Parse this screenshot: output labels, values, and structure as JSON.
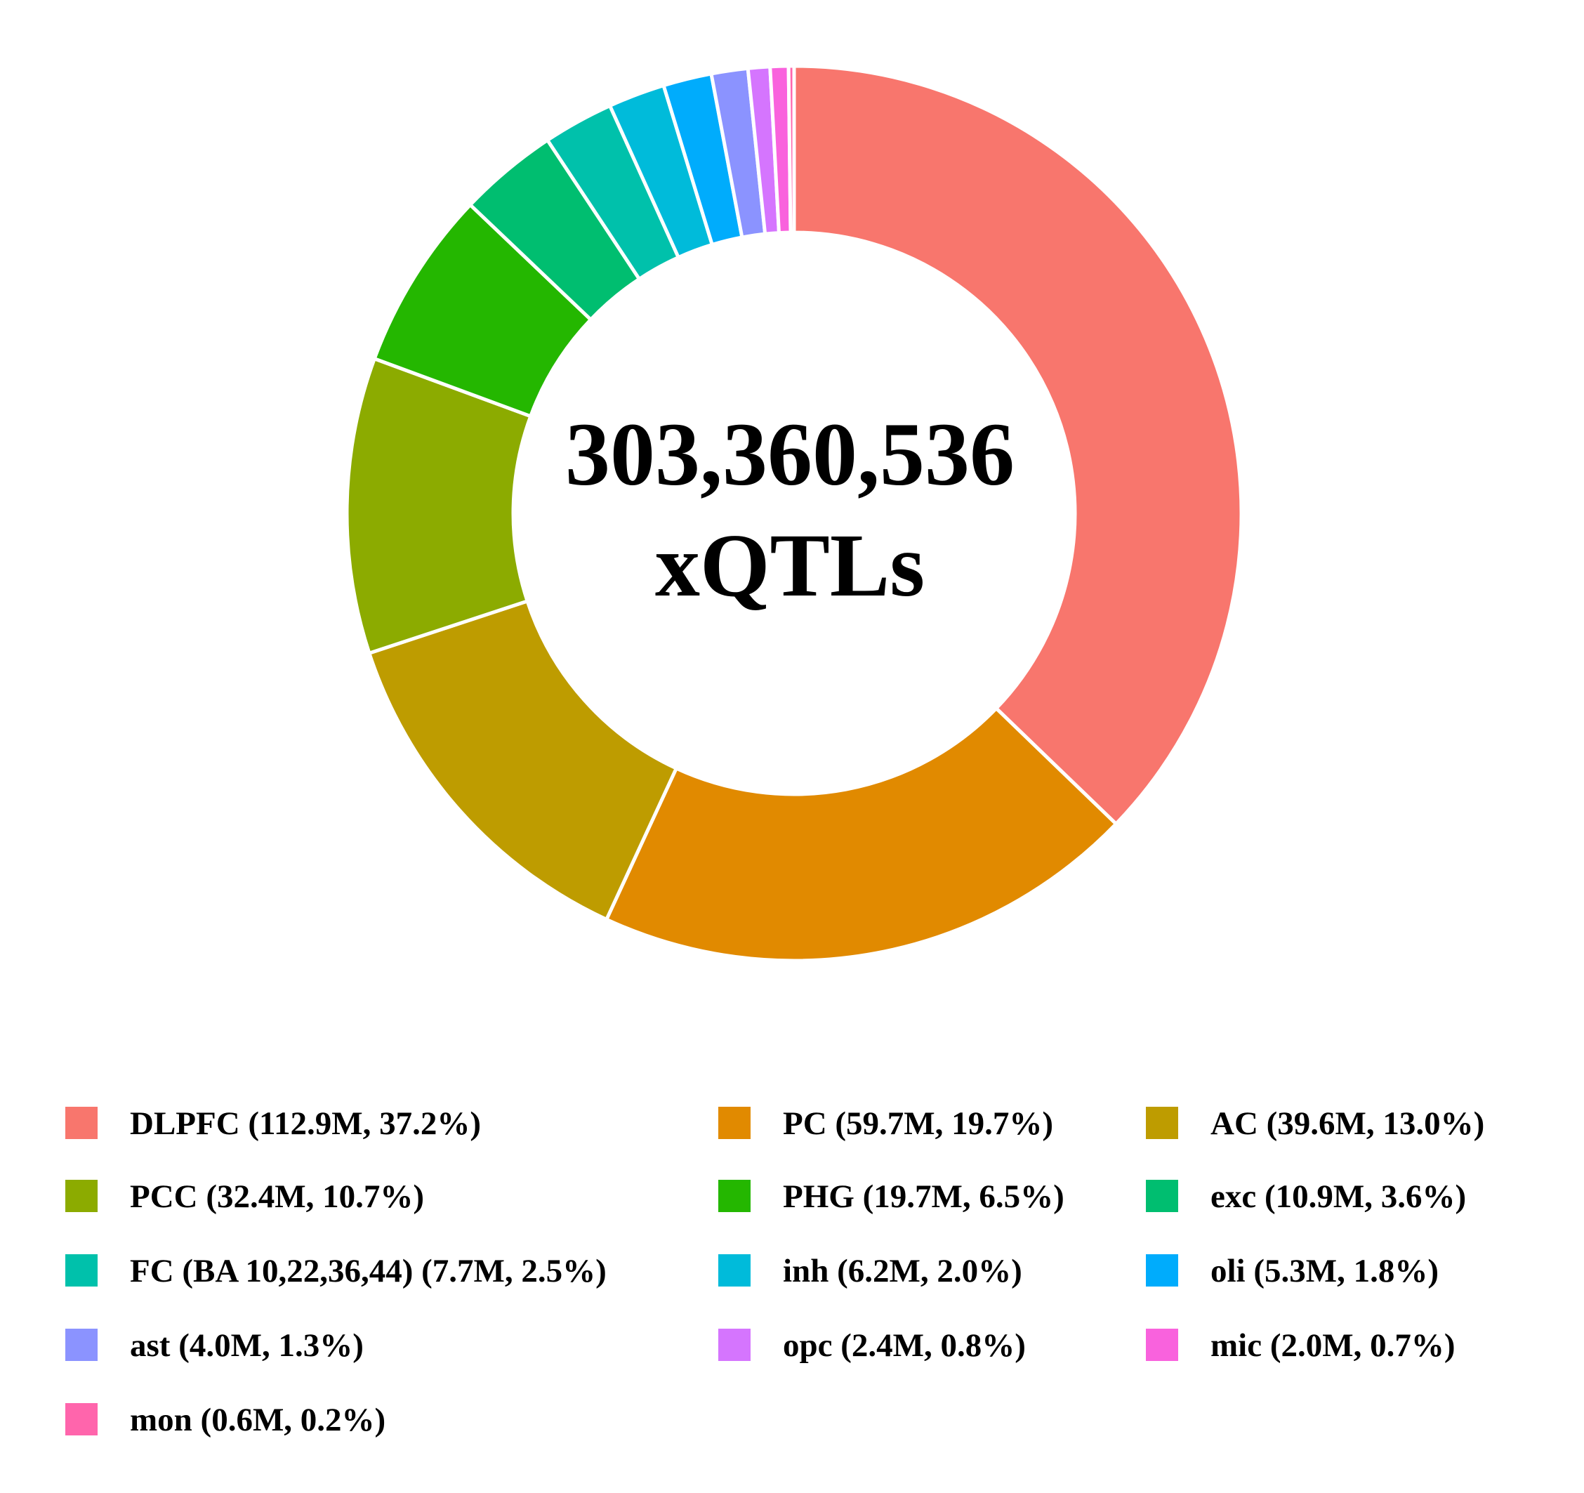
{
  "chart_data": {
    "type": "pie",
    "subtype": "donut",
    "center_text": {
      "line1": "303,360,536",
      "line2": "xQTLs"
    },
    "legend_position": "bottom",
    "slices": [
      {
        "label": "DLPFC (112.9M, 37.2%)",
        "value": 112.9,
        "percent": 37.2,
        "color": "#F8766D"
      },
      {
        "label": "PC (59.7M, 19.7%)",
        "value": 59.7,
        "percent": 19.7,
        "color": "#E18A00"
      },
      {
        "label": "AC (39.6M, 13.0%)",
        "value": 39.6,
        "percent": 13.0,
        "color": "#BE9C00"
      },
      {
        "label": "PCC (32.4M, 10.7%)",
        "value": 32.4,
        "percent": 10.7,
        "color": "#8CAB00"
      },
      {
        "label": "PHG (19.7M, 6.5%)",
        "value": 19.7,
        "percent": 6.5,
        "color": "#24B700"
      },
      {
        "label": "exc (10.9M, 3.6%)",
        "value": 10.9,
        "percent": 3.6,
        "color": "#00BE70"
      },
      {
        "label": "FC (BA 10,22,36,44) (7.7M, 2.5%)",
        "value": 7.7,
        "percent": 2.5,
        "color": "#00C1AB"
      },
      {
        "label": "inh (6.2M, 2.0%)",
        "value": 6.2,
        "percent": 2.0,
        "color": "#00BBDA"
      },
      {
        "label": "oli (5.3M, 1.8%)",
        "value": 5.3,
        "percent": 1.8,
        "color": "#00ACFC"
      },
      {
        "label": "ast (4.0M, 1.3%)",
        "value": 4.0,
        "percent": 1.3,
        "color": "#8B93FF"
      },
      {
        "label": "opc (2.4M, 0.8%)",
        "value": 2.4,
        "percent": 0.8,
        "color": "#D575FE"
      },
      {
        "label": "mic (2.0M, 0.7%)",
        "value": 2.0,
        "percent": 0.7,
        "color": "#F962DD"
      },
      {
        "label": "mon (0.6M, 0.2%)",
        "value": 0.6,
        "percent": 0.2,
        "color": "#FF65AC"
      }
    ]
  }
}
